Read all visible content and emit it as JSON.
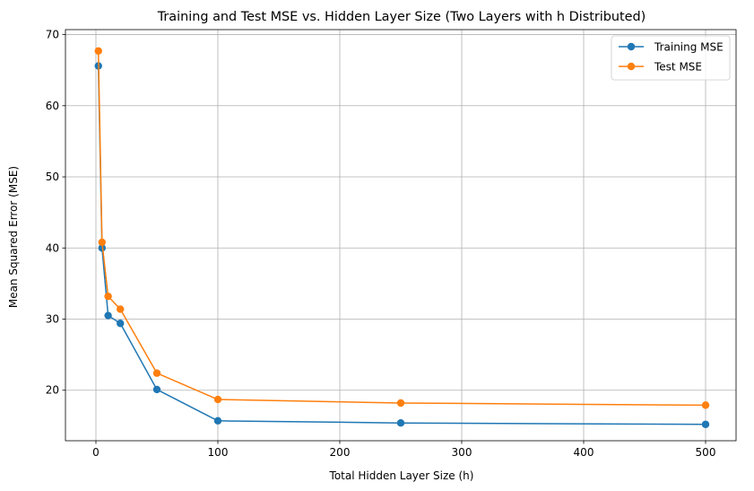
{
  "chart_data": {
    "type": "line",
    "title": "Training and Test MSE vs. Hidden Layer Size (Two Layers with h Distributed)",
    "xlabel": "Total Hidden Layer Size (h)",
    "ylabel": "Mean Squared Error (MSE)",
    "xlim": [
      -25,
      525
    ],
    "ylim": [
      12.9,
      70.7
    ],
    "x_ticks": [
      0,
      100,
      200,
      300,
      400,
      500
    ],
    "y_ticks": [
      20,
      30,
      40,
      50,
      60,
      70
    ],
    "grid": true,
    "legend_position": "top-right",
    "series": [
      {
        "name": "Training MSE",
        "color": "#1f77b4",
        "x": [
          2,
          5,
          10,
          20,
          50,
          100,
          250,
          500
        ],
        "values": [
          65.6,
          40.0,
          30.5,
          29.4,
          20.1,
          15.7,
          15.4,
          15.2
        ]
      },
      {
        "name": "Test MSE",
        "color": "#ff7f0e",
        "x": [
          2,
          5,
          10,
          20,
          50,
          100,
          250,
          500
        ],
        "values": [
          67.7,
          40.8,
          33.2,
          31.4,
          22.4,
          18.7,
          18.2,
          17.9
        ]
      }
    ]
  }
}
